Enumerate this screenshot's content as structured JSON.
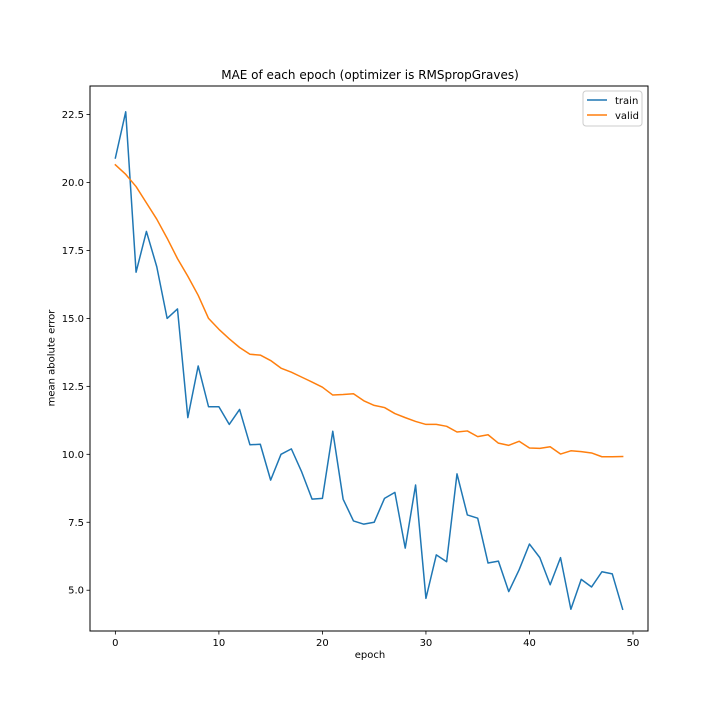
{
  "chart_data": {
    "type": "line",
    "title": "MAE of each epoch (optimizer is RMSpropGraves)",
    "xlabel": "epoch",
    "ylabel": "mean abolute error",
    "xlim": [
      -2.45,
      51.45
    ],
    "ylim": [
      3.5,
      23.55
    ],
    "xticks": [
      0,
      10,
      20,
      30,
      40,
      50
    ],
    "yticks": [
      5.0,
      7.5,
      10.0,
      12.5,
      15.0,
      17.5,
      20.0,
      22.5
    ],
    "ytick_labels": [
      "5.0",
      "7.5",
      "10.0",
      "12.5",
      "15.0",
      "17.5",
      "20.0",
      "22.5"
    ],
    "grid": false,
    "legend": "top-right",
    "x": [
      0,
      1,
      2,
      3,
      4,
      5,
      6,
      7,
      8,
      9,
      10,
      11,
      12,
      13,
      14,
      15,
      16,
      17,
      18,
      19,
      20,
      21,
      22,
      23,
      24,
      25,
      26,
      27,
      28,
      29,
      30,
      31,
      32,
      33,
      34,
      35,
      36,
      37,
      38,
      39,
      40,
      41,
      42,
      43,
      44,
      45,
      46,
      47,
      48,
      49
    ],
    "series": [
      {
        "name": "train",
        "color": "#1f77b4",
        "values": [
          20.9,
          22.6,
          16.7,
          18.2,
          16.9,
          15.0,
          15.35,
          11.35,
          13.25,
          11.75,
          11.75,
          11.1,
          11.65,
          10.35,
          10.37,
          9.05,
          10.0,
          10.2,
          9.35,
          8.35,
          8.38,
          10.85,
          8.35,
          7.55,
          7.43,
          7.5,
          8.38,
          8.6,
          6.55,
          8.87,
          4.7,
          6.3,
          6.05,
          9.28,
          7.77,
          7.65,
          6.0,
          6.07,
          4.95,
          5.75,
          6.7,
          6.2,
          5.2,
          6.2,
          4.3,
          5.4,
          5.12,
          5.68,
          5.6,
          4.3
        ]
      },
      {
        "name": "valid",
        "color": "#ff7f0e",
        "values": [
          20.65,
          20.3,
          19.85,
          19.25,
          18.65,
          17.95,
          17.2,
          16.55,
          15.85,
          15.0,
          14.6,
          14.25,
          13.93,
          13.68,
          13.65,
          13.45,
          13.17,
          13.02,
          12.84,
          12.66,
          12.47,
          12.18,
          12.2,
          12.23,
          11.97,
          11.8,
          11.72,
          11.5,
          11.35,
          11.21,
          11.1,
          11.1,
          11.03,
          10.82,
          10.86,
          10.65,
          10.72,
          10.41,
          10.33,
          10.48,
          10.23,
          10.22,
          10.28,
          10.01,
          10.13,
          10.1,
          10.05,
          9.91,
          9.91,
          9.92
        ]
      }
    ]
  }
}
